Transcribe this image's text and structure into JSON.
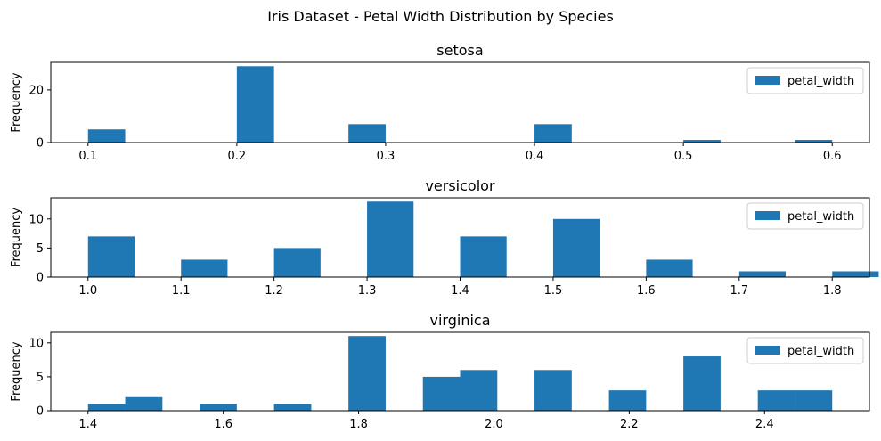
{
  "chart_data": {
    "title": "Iris Dataset - Petal Width Distribution by Species",
    "color": "#1f77b4",
    "panels": [
      {
        "type": "bar",
        "title": "setosa",
        "ylabel": "Frequency",
        "legend": {
          "label": "petal_width",
          "position": "top-right"
        },
        "xlim": [
          0.075,
          0.625
        ],
        "ylim": [
          0,
          30.45
        ],
        "xticks": [
          "0.1",
          "0.2",
          "0.3",
          "0.4",
          "0.5",
          "0.6"
        ],
        "yticks": [
          "0",
          "20"
        ],
        "bin_width": 0.025,
        "bins": [
          {
            "x": 0.1,
            "count": 5
          },
          {
            "x": 0.2,
            "count": 29
          },
          {
            "x": 0.275,
            "count": 7
          },
          {
            "x": 0.4,
            "count": 7
          },
          {
            "x": 0.5,
            "count": 1
          },
          {
            "x": 0.575,
            "count": 1
          }
        ]
      },
      {
        "type": "bar",
        "title": "versicolor",
        "ylabel": "Frequency",
        "legend": {
          "label": "petal_width",
          "position": "top-right"
        },
        "xlim": [
          0.96,
          1.84
        ],
        "ylim": [
          0,
          13.65
        ],
        "xticks": [
          "1.0",
          "1.1",
          "1.2",
          "1.3",
          "1.4",
          "1.5",
          "1.6",
          "1.7",
          "1.8"
        ],
        "yticks": [
          "0",
          "5",
          "10"
        ],
        "bin_width": 0.05,
        "bins": [
          {
            "x": 1.0,
            "count": 7
          },
          {
            "x": 1.1,
            "count": 3
          },
          {
            "x": 1.2,
            "count": 5
          },
          {
            "x": 1.3,
            "count": 13
          },
          {
            "x": 1.4,
            "count": 7
          },
          {
            "x": 1.5,
            "count": 10
          },
          {
            "x": 1.6,
            "count": 3
          },
          {
            "x": 1.7,
            "count": 1
          },
          {
            "x": 1.8,
            "count": 1
          }
        ]
      },
      {
        "type": "bar",
        "title": "virginica",
        "ylabel": "Frequency",
        "legend": {
          "label": "petal_width",
          "position": "top-right"
        },
        "xlim": [
          1.345,
          2.555
        ],
        "ylim": [
          0,
          11.55
        ],
        "xticks": [
          "1.4",
          "1.6",
          "1.8",
          "2.0",
          "2.2",
          "2.4"
        ],
        "yticks": [
          "0",
          "5",
          "10"
        ],
        "bin_width": 0.055,
        "bins": [
          {
            "x": 1.4,
            "count": 1
          },
          {
            "x": 1.455,
            "count": 2
          },
          {
            "x": 1.565,
            "count": 1
          },
          {
            "x": 1.675,
            "count": 1
          },
          {
            "x": 1.785,
            "count": 11
          },
          {
            "x": 1.895,
            "count": 5
          },
          {
            "x": 1.95,
            "count": 6
          },
          {
            "x": 2.06,
            "count": 6
          },
          {
            "x": 2.17,
            "count": 3
          },
          {
            "x": 2.28,
            "count": 8
          },
          {
            "x": 2.39,
            "count": 3
          },
          {
            "x": 2.445,
            "count": 3
          }
        ]
      }
    ]
  }
}
